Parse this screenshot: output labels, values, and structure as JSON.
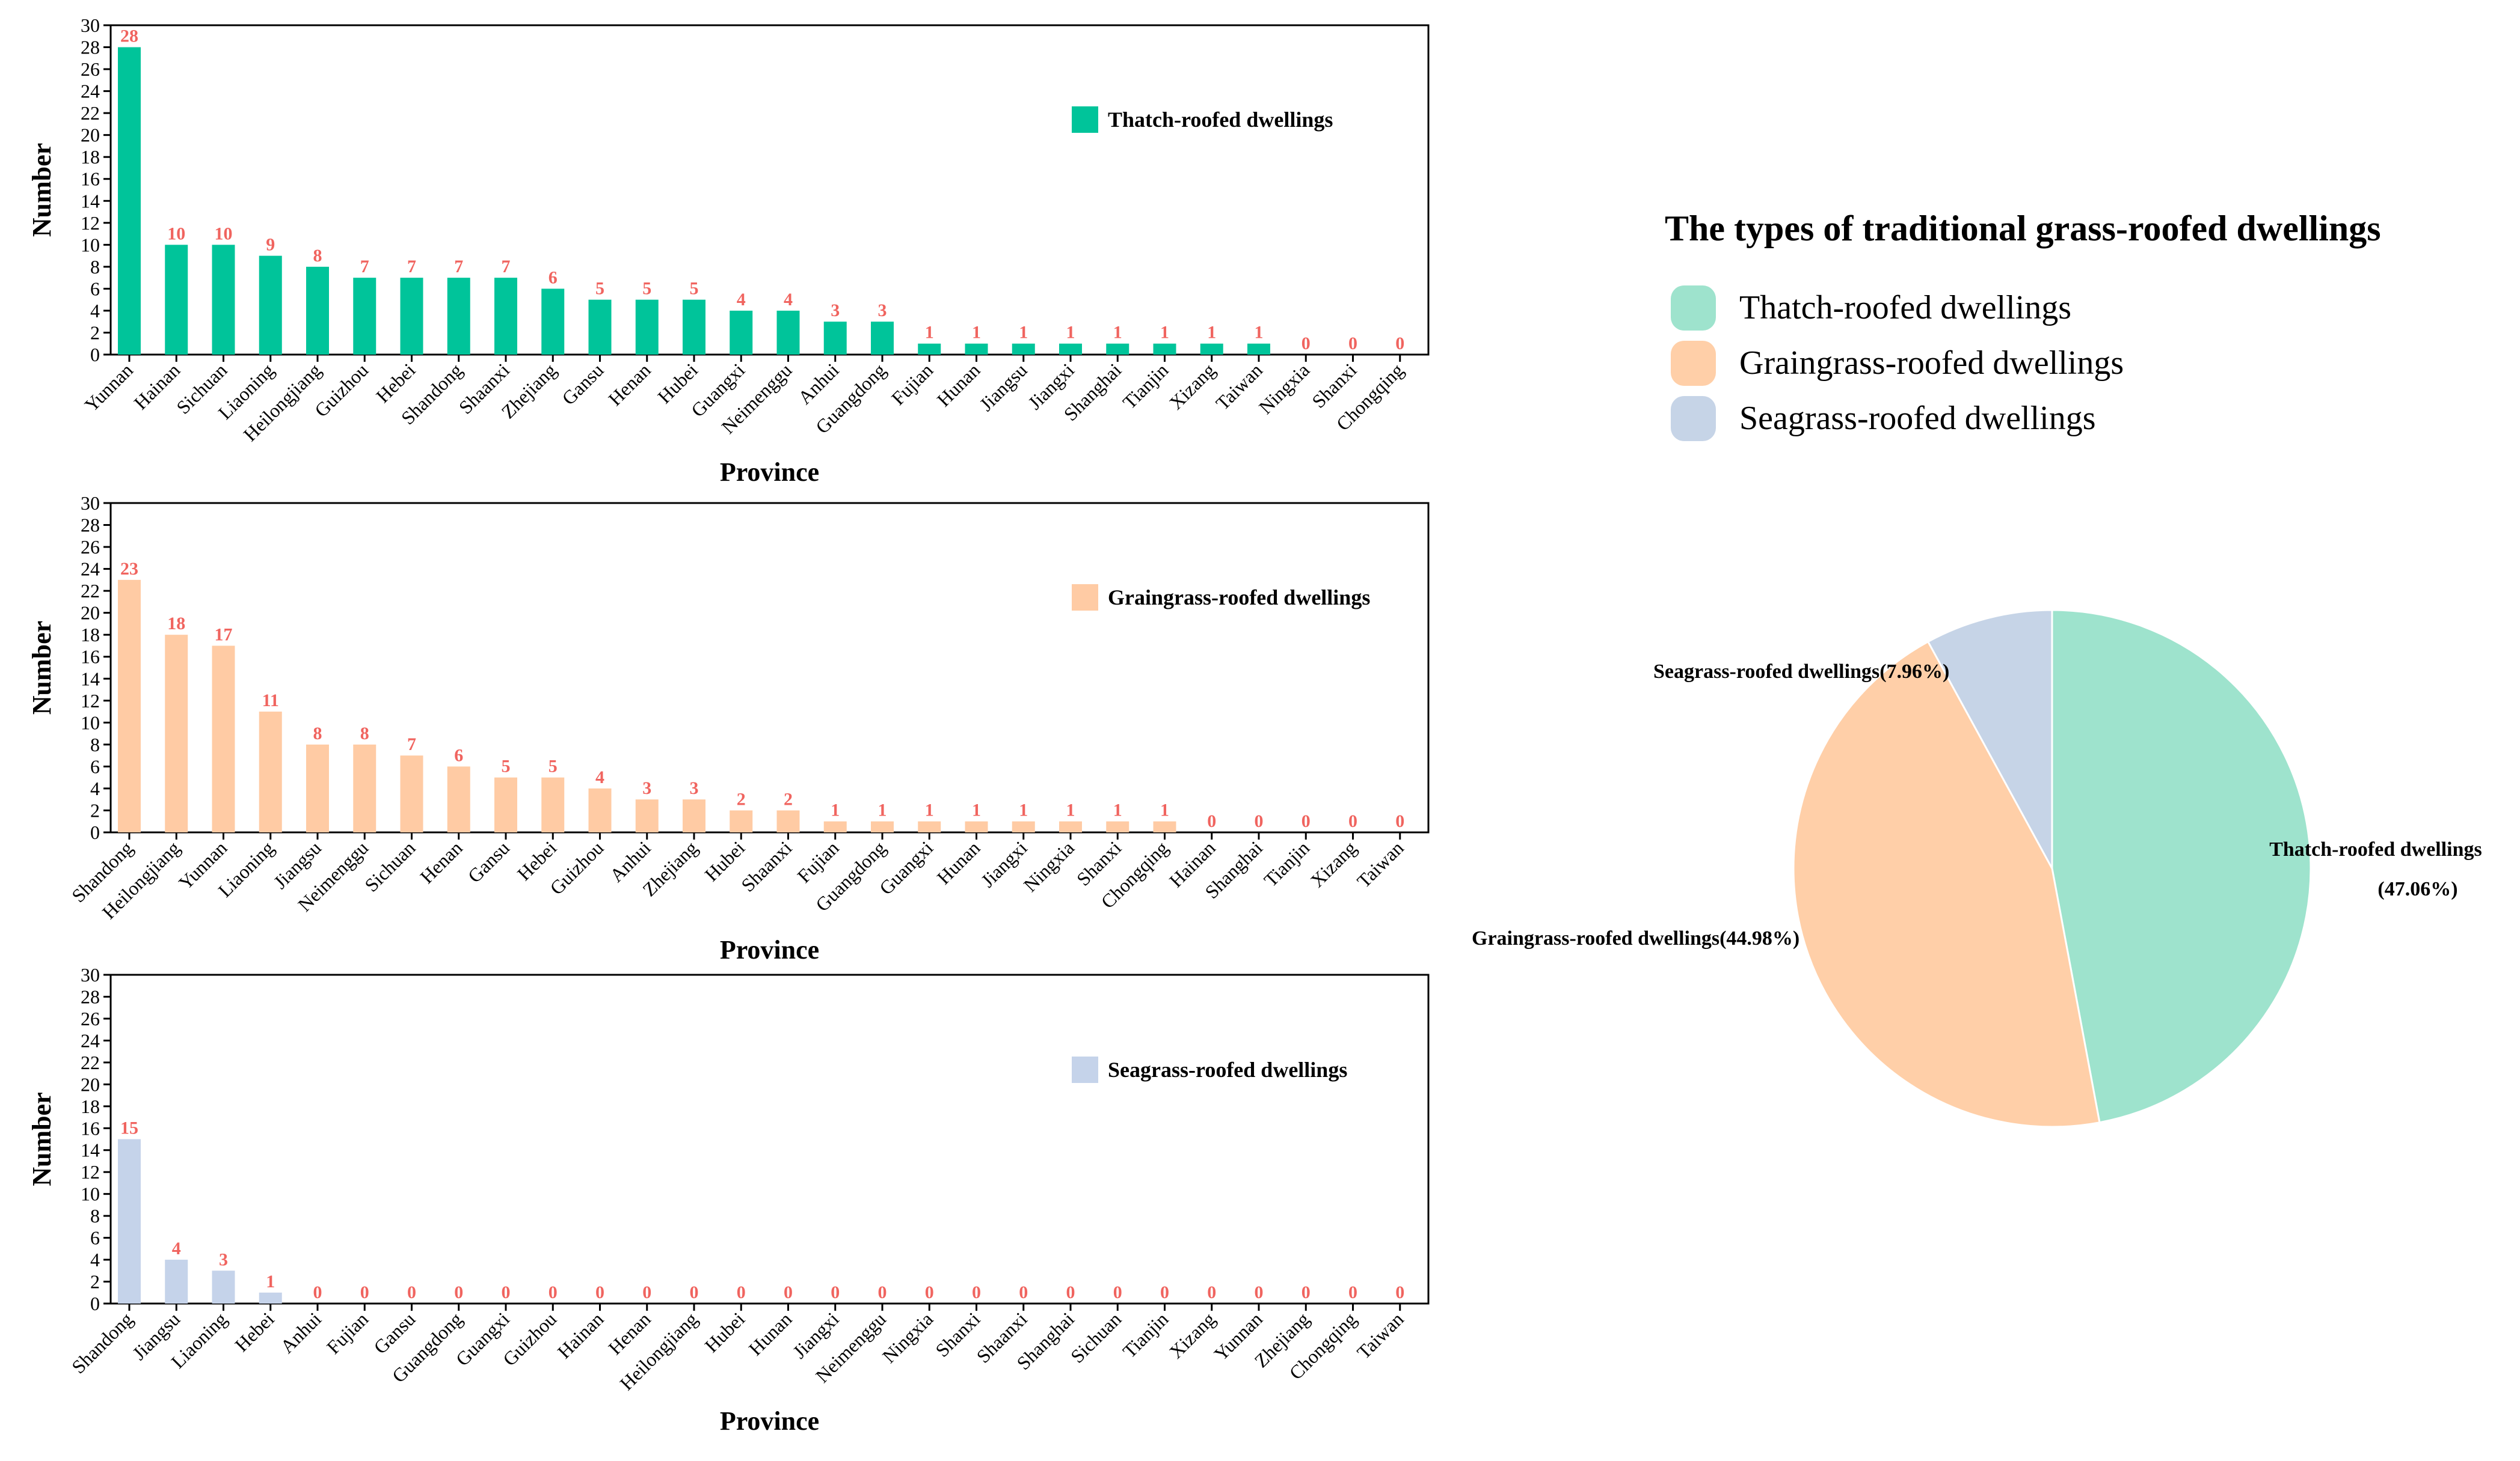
{
  "chart_data": [
    {
      "type": "bar",
      "series_name": "Thatch-roofed dwellings",
      "color": "#00C49A",
      "xlabel": "Province",
      "ylabel": "Number",
      "ylim": [
        0,
        30
      ],
      "yticks": [
        0,
        2,
        4,
        6,
        8,
        10,
        12,
        14,
        16,
        18,
        20,
        22,
        24,
        26,
        28,
        30
      ],
      "legend": "top-right",
      "categories": [
        "Yunnan",
        "Hainan",
        "Sichuan",
        "Liaoning",
        "Heilongjiang",
        "Guizhou",
        "Hebei",
        "Shandong",
        "Shaanxi",
        "Zhejiang",
        "Gansu",
        "Henan",
        "Hubei",
        "Guangxi",
        "Neimenggu",
        "Anhui",
        "Guangdong",
        "Fujian",
        "Hunan",
        "Jiangsu",
        "Jiangxi",
        "Shanghai",
        "Tianjin",
        "Xizang",
        "Taiwan",
        "Ningxia",
        "Shanxi",
        "Chongqing"
      ],
      "values": [
        28,
        10,
        10,
        9,
        8,
        7,
        7,
        7,
        7,
        6,
        5,
        5,
        5,
        4,
        4,
        3,
        3,
        1,
        1,
        1,
        1,
        1,
        1,
        1,
        1,
        0,
        0,
        0
      ]
    },
    {
      "type": "bar",
      "series_name": "Graingrass-roofed dwellings",
      "color": "#FFCBA4",
      "xlabel": "Province",
      "ylabel": "Number",
      "ylim": [
        0,
        30
      ],
      "yticks": [
        0,
        2,
        4,
        6,
        8,
        10,
        12,
        14,
        16,
        18,
        20,
        22,
        24,
        26,
        28,
        30
      ],
      "legend": "top-right",
      "categories": [
        "Shandong",
        "Heilongjiang",
        "Yunnan",
        "Liaoning",
        "Jiangsu",
        "Neimenggu",
        "Sichuan",
        "Henan",
        "Gansu",
        "Hebei",
        "Guizhou",
        "Anhui",
        "Zhejiang",
        "Hubei",
        "Shaanxi",
        "Fujian",
        "Guangdong",
        "Guangxi",
        "Hunan",
        "Jiangxi",
        "Ningxia",
        "Shanxi",
        "Chongqing",
        "Hainan",
        "Shanghai",
        "Tianjin",
        "Xizang",
        "Taiwan"
      ],
      "values": [
        23,
        18,
        17,
        11,
        8,
        8,
        7,
        6,
        5,
        5,
        4,
        3,
        3,
        2,
        2,
        1,
        1,
        1,
        1,
        1,
        1,
        1,
        1,
        0,
        0,
        0,
        0,
        0
      ]
    },
    {
      "type": "bar",
      "series_name": "Seagrass-roofed dwellings",
      "color": "#C5D3EA",
      "xlabel": "Province",
      "ylabel": "Number",
      "ylim": [
        0,
        30
      ],
      "yticks": [
        0,
        2,
        4,
        6,
        8,
        10,
        12,
        14,
        16,
        18,
        20,
        22,
        24,
        26,
        28,
        30
      ],
      "legend": "top-right",
      "categories": [
        "Shandong",
        "Jiangsu",
        "Liaoning",
        "Hebei",
        "Anhui",
        "Fujian",
        "Gansu",
        "Guangdong",
        "Guangxi",
        "Guizhou",
        "Hainan",
        "Henan",
        "Heilongjiang",
        "Hubei",
        "Hunan",
        "Jiangxi",
        "Neimenggu",
        "Ningxia",
        "Shanxi",
        "Shaanxi",
        "Shanghai",
        "Sichuan",
        "Tianjin",
        "Xizang",
        "Yunnan",
        "Zhejiang",
        "Chongqing",
        "Taiwan"
      ],
      "values": [
        15,
        4,
        3,
        1,
        0,
        0,
        0,
        0,
        0,
        0,
        0,
        0,
        0,
        0,
        0,
        0,
        0,
        0,
        0,
        0,
        0,
        0,
        0,
        0,
        0,
        0,
        0,
        0
      ]
    },
    {
      "type": "pie",
      "title": "The types of traditional grass-roofed dwellings",
      "legend": "top",
      "slices": [
        {
          "name": "Thatch-roofed dwellings",
          "value": 47.06,
          "color": "#9EE3CD",
          "label": "Thatch-roofed dwellings",
          "label2": "(47.06%)"
        },
        {
          "name": "Graingrass-roofed dwellings",
          "value": 44.98,
          "color": "#FFCFA8",
          "label": "Graingrass-roofed dwellings(44.98%)",
          "label2": ""
        },
        {
          "name": "Seagrass-roofed dwellings",
          "value": 7.96,
          "color": "#C6D4E7",
          "label": "Seagrass-roofed dwellings(7.96%)",
          "label2": ""
        }
      ]
    }
  ]
}
